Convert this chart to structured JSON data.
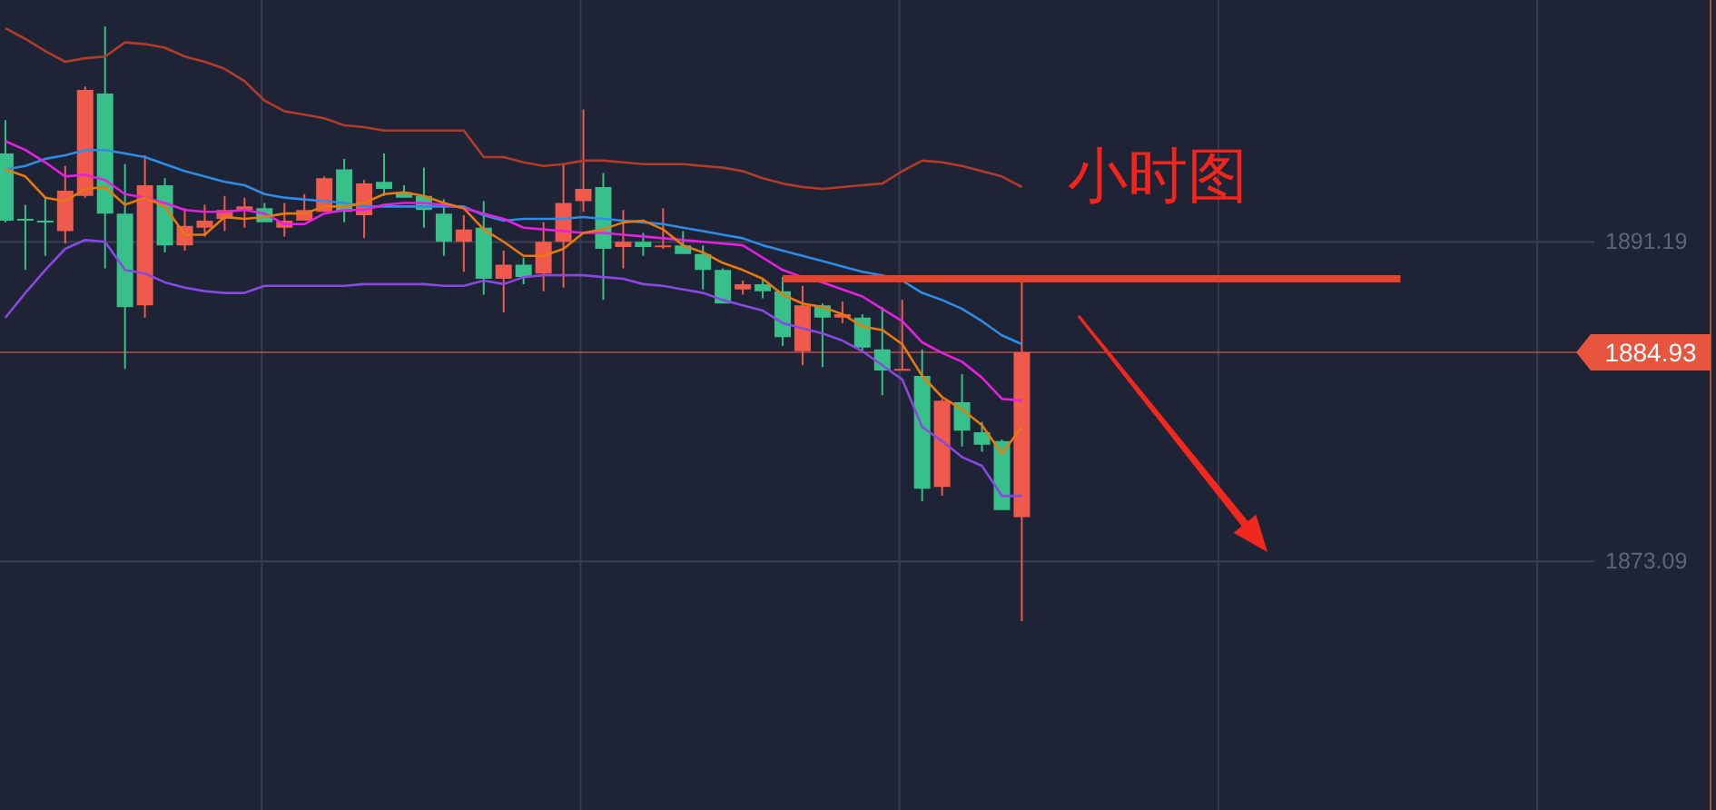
{
  "chart_data": {
    "type": "candlestick",
    "title": "小时图",
    "categories": [
      null,
      null,
      null,
      null,
      null,
      null,
      null,
      null,
      null,
      null,
      null,
      null,
      null,
      null,
      null,
      null,
      null,
      null,
      null,
      null,
      null,
      null,
      null,
      null,
      null,
      null,
      null,
      null,
      null,
      null,
      null,
      null,
      null,
      null,
      null,
      null,
      null,
      null,
      null,
      null,
      null,
      null,
      null,
      null,
      null,
      null,
      null,
      null,
      null,
      null,
      null,
      null,
      null,
      null,
      null,
      null,
      null,
      null,
      null,
      null,
      null,
      null,
      null,
      null,
      null,
      null,
      null,
      null,
      null,
      null,
      null,
      null,
      null,
      null,
      null,
      null,
      null,
      null,
      null,
      null
    ],
    "ohlc": [
      [
        1896.2,
        1898.1,
        1892.3,
        1892.4
      ],
      [
        1892.5,
        1893.3,
        1889.6,
        1892.4
      ],
      [
        1892.4,
        1893.7,
        1890.4,
        1892.3
      ],
      [
        1891.8,
        1895.5,
        1891.1,
        1894.1
      ],
      [
        1893.8,
        1900.0,
        1893.7,
        1899.8
      ],
      [
        1899.6,
        1903.4,
        1889.7,
        1892.8
      ],
      [
        1892.8,
        1895.6,
        1884.0,
        1887.5
      ],
      [
        1887.6,
        1896.1,
        1886.9,
        1894.4
      ],
      [
        1894.4,
        1894.8,
        1890.6,
        1891.0
      ],
      [
        1891.0,
        1893.1,
        1890.7,
        1892.1
      ],
      [
        1892.0,
        1893.3,
        1891.5,
        1892.4
      ],
      [
        1892.5,
        1893.8,
        1891.8,
        1893.0
      ],
      [
        1893.0,
        1893.7,
        1892.0,
        1893.2
      ],
      [
        1893.1,
        1893.4,
        1892.3,
        1892.3
      ],
      [
        1892.0,
        1893.4,
        1891.5,
        1892.4
      ],
      [
        1892.4,
        1893.9,
        1892.4,
        1893.0
      ],
      [
        1892.9,
        1894.9,
        1892.9,
        1894.8
      ],
      [
        1895.3,
        1895.9,
        1892.3,
        1892.9
      ],
      [
        1892.7,
        1894.7,
        1891.4,
        1894.5
      ],
      [
        1894.6,
        1896.2,
        1893.8,
        1894.2
      ],
      [
        1894.0,
        1894.4,
        1893.7,
        1893.7
      ],
      [
        1893.8,
        1895.4,
        1892.0,
        1893.0
      ],
      [
        1892.8,
        1893.6,
        1890.4,
        1891.2
      ],
      [
        1891.2,
        1892.7,
        1889.5,
        1891.9
      ],
      [
        1892.0,
        1893.5,
        1888.2,
        1889.1
      ],
      [
        1889.1,
        1890.7,
        1887.2,
        1889.9
      ],
      [
        1889.9,
        1890.3,
        1888.8,
        1889.2
      ],
      [
        1889.4,
        1892.3,
        1888.4,
        1891.2
      ],
      [
        1891.2,
        1895.6,
        1888.6,
        1893.4
      ],
      [
        1893.5,
        1898.7,
        1892.9,
        1894.2
      ],
      [
        1894.3,
        1895.1,
        1887.9,
        1890.8
      ],
      [
        1890.9,
        1893.0,
        1889.7,
        1891.2
      ],
      [
        1891.2,
        1891.7,
        1890.4,
        1890.9
      ],
      [
        1890.9,
        1893.1,
        1890.8,
        1891.0
      ],
      [
        1891.0,
        1891.8,
        1890.5,
        1890.5
      ],
      [
        1890.5,
        1891.0,
        1888.5,
        1889.6
      ],
      [
        1889.6,
        1889.7,
        1887.7,
        1887.7
      ],
      [
        1888.5,
        1889.0,
        1888.2,
        1888.8
      ],
      [
        1888.8,
        1889.1,
        1888.0,
        1888.4
      ],
      [
        1888.4,
        1889.2,
        1885.3,
        1885.8
      ],
      [
        1885.0,
        1888.7,
        1884.2,
        1887.6
      ],
      [
        1887.6,
        1887.7,
        1884.1,
        1886.9
      ],
      [
        1886.9,
        1887.8,
        1886.6,
        1887.1
      ],
      [
        1886.9,
        1887.1,
        1884.9,
        1885.2
      ],
      [
        1885.1,
        1887.5,
        1882.5,
        1883.9
      ],
      [
        1883.9,
        1887.9,
        1883.9,
        1884.0
      ],
      [
        1883.6,
        1885.1,
        1876.5,
        1877.2
      ],
      [
        1877.3,
        1882.3,
        1876.8,
        1882.2
      ],
      [
        1882.1,
        1883.7,
        1879.6,
        1880.5
      ],
      [
        1880.4,
        1881.0,
        1879.3,
        1879.7
      ],
      [
        1879.9,
        1880.0,
        1876.0,
        1876.0
      ],
      [
        1875.6,
        1889.0,
        1869.7,
        1884.93
      ],
      null,
      null,
      null,
      null,
      null,
      null,
      null,
      null,
      null,
      null,
      null,
      null,
      null,
      null,
      null,
      null,
      null,
      null,
      null,
      null,
      null,
      null,
      null,
      null,
      null,
      null,
      null,
      null
    ],
    "colors": [
      "#37c08a",
      "#37c08a",
      "#37c08a",
      "#ef5a4c",
      "#ef5a4c",
      "#37c08a",
      "#37c08a",
      "#ef5a4c",
      "#37c08a",
      "#ef5a4c",
      "#ef5a4c",
      "#ef5a4c",
      "#ef5a4c",
      "#37c08a",
      "#ef5a4c",
      "#ef5a4c",
      "#ef5a4c",
      "#37c08a",
      "#ef5a4c",
      "#37c08a",
      "#37c08a",
      "#37c08a",
      "#37c08a",
      "#ef5a4c",
      "#37c08a",
      "#ef5a4c",
      "#37c08a",
      "#ef5a4c",
      "#ef5a4c",
      "#ef5a4c",
      "#37c08a",
      "#ef5a4c",
      "#37c08a",
      "#ef5a4c",
      "#37c08a",
      "#37c08a",
      "#37c08a",
      "#ef5a4c",
      "#37c08a",
      "#37c08a",
      "#ef5a4c",
      "#37c08a",
      "#ef5a4c",
      "#37c08a",
      "#37c08a",
      "#ef5a4c",
      "#37c08a",
      "#ef5a4c",
      "#37c08a",
      "#37c08a",
      "#37c08a",
      "#ef5a4c",
      null,
      null,
      null,
      null,
      null,
      null,
      null,
      null,
      null,
      null,
      null,
      null,
      null,
      null,
      null,
      null,
      null,
      null,
      null,
      null,
      null,
      null,
      null,
      null,
      null,
      null,
      null,
      null
    ],
    "series": [
      {
        "type": "line",
        "color": "#b23b2c",
        "values": [
          1903.3,
          1902.7,
          1902.0,
          1901.4,
          1901.6,
          1901.7,
          1902.5,
          1902.4,
          1902.2,
          1901.7,
          1901.4,
          1901.0,
          1900.3,
          1899.2,
          1898.6,
          1898.4,
          1898.2,
          1897.8,
          1897.7,
          1897.5,
          1897.5,
          1897.5,
          1897.5,
          1897.5,
          1896.0,
          1896.0,
          1895.7,
          1895.5,
          1895.6,
          1895.8,
          1895.8,
          1895.7,
          1895.6,
          1895.6,
          1895.6,
          1895.5,
          1895.4,
          1895.2,
          1894.8,
          1894.5,
          1894.3,
          1894.2,
          1894.3,
          1894.4,
          1894.5,
          1895.2,
          1895.8,
          1895.7,
          1895.5,
          1895.2,
          1894.9,
          1894.3,
          null,
          null,
          null,
          null,
          null,
          null,
          null,
          null,
          null,
          null,
          null,
          null,
          null,
          null,
          null,
          null,
          null,
          null,
          null,
          null,
          null,
          null,
          null,
          null,
          null,
          null,
          null,
          null
        ]
      },
      {
        "type": "line",
        "color": "#2f8ce6",
        "values": [
          1895.3,
          1895.5,
          1895.9,
          1896.1,
          1896.4,
          1896.4,
          1896.2,
          1896.0,
          1895.6,
          1895.2,
          1894.9,
          1894.6,
          1894.4,
          1893.9,
          1893.7,
          1893.6,
          1893.5,
          1893.4,
          1893.2,
          1893.2,
          1893.2,
          1893.2,
          1893.2,
          1893.2,
          1892.7,
          1892.4,
          1892.5,
          1892.5,
          1892.5,
          1892.6,
          1892.5,
          1892.4,
          1892.3,
          1892.2,
          1892.0,
          1891.8,
          1891.6,
          1891.4,
          1891.0,
          1890.7,
          1890.4,
          1890.1,
          1889.8,
          1889.5,
          1889.3,
          1889.0,
          1888.3,
          1887.9,
          1887.4,
          1886.7,
          1885.9,
          1885.4,
          null,
          null,
          null,
          null,
          null,
          null,
          null,
          null,
          null,
          null,
          null,
          null,
          null,
          null,
          null,
          null,
          null,
          null,
          null,
          null,
          null,
          null,
          null,
          null,
          null,
          null,
          null,
          null
        ]
      },
      {
        "type": "line",
        "color": "#8a48e2",
        "values": [
          1886.9,
          1888.3,
          1889.6,
          1890.8,
          1891.3,
          1891.2,
          1889.6,
          1889.4,
          1888.9,
          1888.6,
          1888.4,
          1888.3,
          1888.3,
          1888.7,
          1888.7,
          1888.7,
          1888.7,
          1888.7,
          1888.8,
          1888.8,
          1888.8,
          1888.8,
          1888.7,
          1888.7,
          1889.0,
          1888.8,
          1889.2,
          1889.3,
          1889.3,
          1889.3,
          1889.2,
          1889.1,
          1888.8,
          1888.7,
          1888.5,
          1888.3,
          1887.9,
          1887.6,
          1887.3,
          1886.6,
          1886.3,
          1886.0,
          1885.6,
          1885.0,
          1884.2,
          1883.4,
          1880.7,
          1879.9,
          1879.0,
          1878.5,
          1876.8,
          1876.8,
          null,
          null,
          null,
          null,
          null,
          null,
          null,
          null,
          null,
          null,
          null,
          null,
          null,
          null,
          null,
          null,
          null,
          null,
          null,
          null,
          null,
          null,
          null,
          null,
          null,
          null,
          null,
          null
        ]
      },
      {
        "type": "line",
        "color": "#e620e0",
        "values": [
          1896.9,
          1896.4,
          1895.7,
          1894.9,
          1895.0,
          1894.7,
          1893.9,
          1893.7,
          1893.4,
          1893.0,
          1892.9,
          1892.9,
          1893.0,
          1892.8,
          1892.2,
          1892.2,
          1892.8,
          1893.0,
          1893.0,
          1893.3,
          1893.4,
          1893.4,
          1893.3,
          1893.1,
          1892.8,
          1892.5,
          1892.0,
          1891.9,
          1891.8,
          1891.7,
          1891.7,
          1891.6,
          1891.5,
          1891.4,
          1891.3,
          1891.2,
          1891.1,
          1891.0,
          1890.3,
          1889.6,
          1889.2,
          1888.9,
          1888.5,
          1888.1,
          1887.4,
          1886.7,
          1885.5,
          1884.9,
          1884.4,
          1883.5,
          1882.3,
          1882.2,
          null,
          null,
          null,
          null,
          null,
          null,
          null,
          null,
          null,
          null,
          null,
          null,
          null,
          null,
          null,
          null,
          null,
          null,
          null,
          null,
          null,
          null,
          null,
          null,
          null,
          null,
          null,
          null
        ]
      },
      {
        "type": "line",
        "color": "#e8790e",
        "values": [
          1895.3,
          1894.9,
          1893.7,
          1893.5,
          1894.2,
          1894.3,
          1893.3,
          1893.7,
          1893.2,
          1891.6,
          1891.6,
          1892.6,
          1892.5,
          1892.6,
          1892.8,
          1892.8,
          1893.2,
          1893.2,
          1893.4,
          1893.9,
          1894.0,
          1893.8,
          1893.4,
          1893.1,
          1891.9,
          1891.2,
          1890.4,
          1890.4,
          1890.8,
          1891.7,
          1891.9,
          1892.3,
          1892.4,
          1891.9,
          1891.0,
          1890.6,
          1890.0,
          1889.6,
          1889.1,
          1888.2,
          1887.7,
          1887.5,
          1887.1,
          1886.4,
          1886.2,
          1885.4,
          1883.6,
          1882.4,
          1881.7,
          1880.8,
          1879.2,
          1880.7,
          null,
          null,
          null,
          null,
          null,
          null,
          null,
          null,
          null,
          null,
          null,
          null,
          null,
          null,
          null,
          null,
          null,
          null,
          null,
          null,
          null,
          null,
          null,
          null,
          null,
          null,
          null,
          null
        ]
      },
      {
        "type": "line",
        "color": "#e2442e",
        "values": [
          null,
          null,
          null,
          null,
          null,
          null,
          null,
          null,
          null,
          null,
          null,
          null,
          null,
          null,
          null,
          null,
          null,
          null,
          null,
          null,
          null,
          null,
          null,
          null,
          null,
          null,
          null,
          null,
          null,
          null,
          null,
          null,
          null,
          null,
          null,
          null,
          null,
          null,
          null,
          1889.1,
          1889.1,
          1889.1,
          1889.1,
          1889.1,
          1889.1,
          1889.1,
          1889.1,
          1889.1,
          1889.1,
          1889.1,
          1889.1,
          1889.1,
          1889.1,
          1889.1,
          1889.1,
          1889.1,
          1889.1,
          1889.1,
          1889.1,
          1889.1,
          1889.1,
          1889.1,
          1889.1,
          1889.1,
          1889.1,
          1889.1,
          1889.1,
          1889.1,
          1889.1,
          1889.1,
          1889.1,
          null,
          null,
          null,
          null,
          null,
          null,
          null,
          null,
          null
        ]
      }
    ],
    "ylim": [
      1859.0,
      1904.9
    ],
    "yticks": [
      1891.19,
      1873.09
    ],
    "grid": true,
    "tick_labels": "y",
    "ref_lines": [
      {
        "axis": "y",
        "value": 1884.93,
        "label": "1884.93",
        "color": "#e8553f"
      }
    ]
  }
}
